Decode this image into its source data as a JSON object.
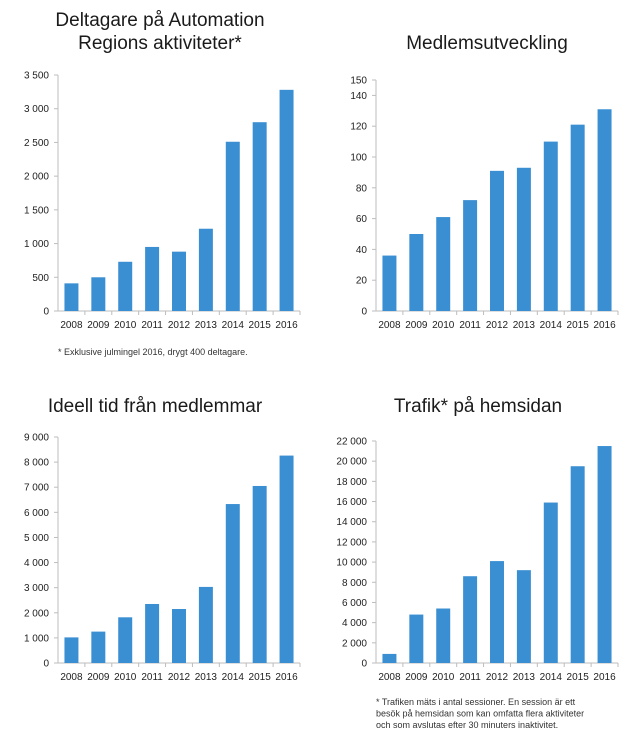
{
  "colors": {
    "bar": "#3a8fd2",
    "axis": "#bdbdbd",
    "text": "#1a1a1a"
  },
  "chart_data": [
    {
      "type": "bar",
      "title_lines": [
        "Deltagare på Automation",
        "Regions aktiviteter*"
      ],
      "categories": [
        "2008",
        "2009",
        "2010",
        "2011",
        "2012",
        "2013",
        "2014",
        "2015",
        "2016"
      ],
      "values": [
        410,
        500,
        730,
        950,
        880,
        1220,
        2510,
        2800,
        3280
      ],
      "ylim": [
        0,
        3500
      ],
      "yticks": [
        0,
        500,
        1000,
        1500,
        2000,
        2500,
        3000,
        3500
      ],
      "ytick_labels": [
        "0",
        "500",
        "1 000",
        "1 500",
        "2 000",
        "2 500",
        "3 000",
        "3 500"
      ],
      "footnote": [
        "* Exklusive julmingel 2016, drygt 400 deltagare."
      ],
      "grid": false
    },
    {
      "type": "bar",
      "title_lines": [
        "Medlemsutveckling"
      ],
      "categories": [
        "2008",
        "2009",
        "2010",
        "2011",
        "2012",
        "2013",
        "2014",
        "2015",
        "2016"
      ],
      "values": [
        36,
        50,
        61,
        72,
        91,
        93,
        110,
        121,
        131
      ],
      "ylim": [
        0,
        150
      ],
      "yticks": [
        0,
        20,
        40,
        60,
        80,
        100,
        120,
        140,
        150
      ],
      "ytick_labels": [
        "0",
        "20",
        "40",
        "60",
        "80",
        "100",
        "120",
        "140",
        "150"
      ],
      "footnote": [],
      "grid": false
    },
    {
      "type": "bar",
      "title_lines": [
        "Ideell tid från medlemmar"
      ],
      "categories": [
        "2008",
        "2009",
        "2010",
        "2011",
        "2012",
        "2013",
        "2014",
        "2015",
        "2016"
      ],
      "values": [
        1020,
        1250,
        1820,
        2350,
        2150,
        3030,
        6330,
        7050,
        8260
      ],
      "ylim": [
        0,
        9000
      ],
      "yticks": [
        0,
        1000,
        2000,
        3000,
        4000,
        5000,
        6000,
        7000,
        8000,
        9000
      ],
      "ytick_labels": [
        "0",
        "1 000",
        "2 000",
        "3 000",
        "4 000",
        "5 000",
        "6 000",
        "7 000",
        "8 000",
        "9 000"
      ],
      "footnote": [],
      "grid": false
    },
    {
      "type": "bar",
      "title_lines": [
        "Trafik* på hemsidan"
      ],
      "categories": [
        "2008",
        "2009",
        "2010",
        "2011",
        "2012",
        "2013",
        "2014",
        "2015",
        "2016"
      ],
      "values": [
        900,
        4800,
        5400,
        8600,
        10100,
        9200,
        15900,
        19500,
        21500
      ],
      "ylim": [
        0,
        22000
      ],
      "yticks": [
        0,
        2000,
        4000,
        6000,
        8000,
        10000,
        12000,
        14000,
        16000,
        18000,
        20000,
        22000
      ],
      "ytick_labels": [
        "0",
        "2 000",
        "4 000",
        "6 000",
        "8 000",
        "10 000",
        "12 000",
        "14 000",
        "16 000",
        "18 000",
        "20 000",
        "22 000"
      ],
      "footnote": [
        "* Trafiken mäts i antal sessioner. En session är ett",
        "besök på hemsidan som kan omfatta flera aktiviteter",
        "och som avslutas efter 30 minuters inaktivitet."
      ],
      "grid": false
    }
  ]
}
